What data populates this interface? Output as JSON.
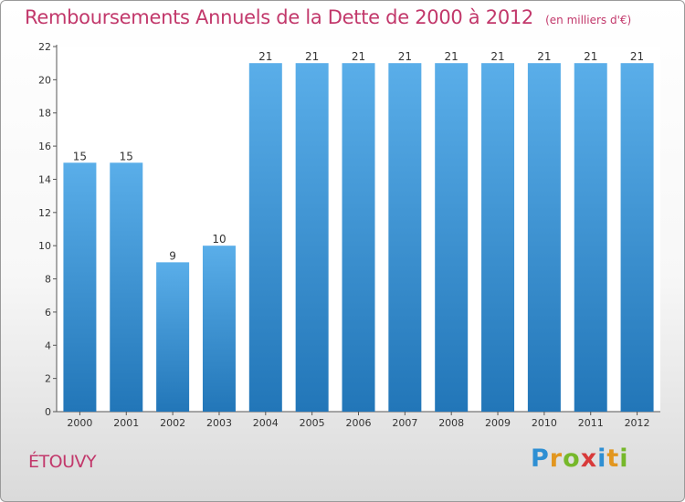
{
  "title": "Remboursements Annuels de la Dette de 2000 à 2012",
  "subtitle": "(en milliers d'€)",
  "commune": "ÉTOUVY",
  "logo": {
    "letters": [
      "P",
      "r",
      "o",
      "x",
      "i",
      "t",
      "i"
    ],
    "colors": [
      "#2e8fd3",
      "#e2961f",
      "#76b82a",
      "#d83a3a",
      "#2e8fd3",
      "#e2961f",
      "#76b82a"
    ]
  },
  "colors": {
    "bar_top": "#5aaee9",
    "bar_bottom": "#2276b8",
    "accent": "#c2386b"
  },
  "chart_data": {
    "type": "bar",
    "categories": [
      "2000",
      "2001",
      "2002",
      "2003",
      "2004",
      "2005",
      "2006",
      "2007",
      "2008",
      "2009",
      "2010",
      "2011",
      "2012"
    ],
    "values": [
      15,
      15,
      9,
      10,
      21,
      21,
      21,
      21,
      21,
      21,
      21,
      21,
      21
    ],
    "data_labels": [
      "15",
      "15",
      "9",
      "10",
      "21",
      "21",
      "21",
      "21",
      "21",
      "21",
      "21",
      "21",
      "21"
    ],
    "ylim": [
      0,
      22
    ],
    "yticks": [
      0,
      2,
      4,
      6,
      8,
      10,
      12,
      14,
      16,
      18,
      20,
      22
    ],
    "ytick_labels": [
      "0",
      "2",
      "4",
      "6",
      "8",
      "10",
      "12",
      "14",
      "16",
      "18",
      "20",
      "22"
    ],
    "grid": false,
    "legend": "none"
  }
}
